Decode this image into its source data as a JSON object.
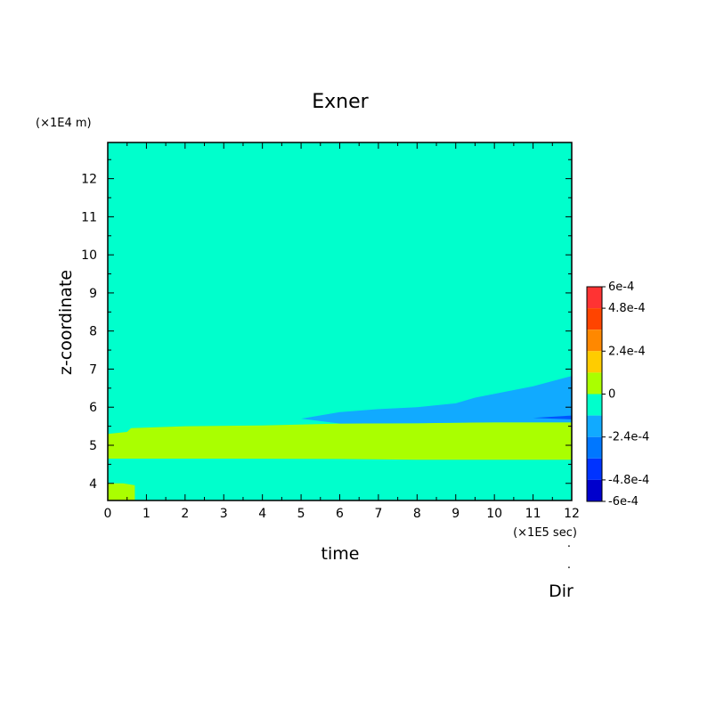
{
  "chart_data": {
    "type": "heatmap",
    "title": "Exner",
    "xlabel": "time",
    "ylabel": "z-coordinate",
    "x_unit": "(×1E5 sec)",
    "y_unit": "(×1E4 m)",
    "xlim": [
      0,
      12
    ],
    "ylim": [
      3.55,
      12.95
    ],
    "x_ticks": [
      "0",
      "1",
      "2",
      "3",
      "4",
      "5",
      "6",
      "7",
      "8",
      "9",
      "10",
      "11",
      "12"
    ],
    "y_ticks": [
      "4",
      "5",
      "6",
      "7",
      "8",
      "9",
      "10",
      "11",
      "12"
    ],
    "background_level_color": "#00ffcc",
    "regions": [
      {
        "name": "positive band",
        "color": "#aaff00",
        "polygon": [
          [
            0,
            4.65
          ],
          [
            0,
            5.3
          ],
          [
            0.5,
            5.35
          ],
          [
            0.6,
            5.45
          ],
          [
            2,
            5.5
          ],
          [
            4,
            5.52
          ],
          [
            6,
            5.57
          ],
          [
            8,
            5.58
          ],
          [
            10,
            5.6
          ],
          [
            12,
            5.6
          ],
          [
            12,
            4.62
          ],
          [
            8,
            4.62
          ],
          [
            6,
            4.64
          ],
          [
            3,
            4.65
          ],
          [
            0,
            4.65
          ]
        ]
      },
      {
        "name": "positive patch near ground",
        "color": "#aaff00",
        "polygon": [
          [
            0,
            3.55
          ],
          [
            0,
            4.0
          ],
          [
            0.4,
            4.0
          ],
          [
            0.7,
            3.95
          ],
          [
            0.7,
            3.55
          ]
        ]
      },
      {
        "name": "negative region aloft",
        "color": "#11aaff",
        "polygon": [
          [
            5,
            5.7
          ],
          [
            6,
            5.87
          ],
          [
            7,
            5.95
          ],
          [
            8,
            6.0
          ],
          [
            9,
            6.1
          ],
          [
            9.5,
            6.25
          ],
          [
            10,
            6.35
          ],
          [
            11,
            6.55
          ],
          [
            12,
            6.82
          ],
          [
            12,
            5.6
          ],
          [
            10,
            5.6
          ],
          [
            8,
            5.58
          ],
          [
            6,
            5.57
          ],
          [
            5,
            5.7
          ]
        ]
      },
      {
        "name": "stronger negative sliver",
        "color": "#0055ff",
        "polygon": [
          [
            11,
            5.72
          ],
          [
            12,
            5.78
          ],
          [
            12,
            5.68
          ],
          [
            11.5,
            5.7
          ],
          [
            11,
            5.72
          ]
        ]
      }
    ],
    "colorbar": {
      "labels": [
        "6e-4",
        "4.8e-4",
        "2.4e-4",
        "0",
        "-2.4e-4",
        "-4.8e-4",
        "-6e-4"
      ],
      "label_values": [
        6,
        4.8,
        2.4,
        0,
        -2.4,
        -4.8,
        -6
      ],
      "bins": [
        {
          "lo": 4.8,
          "hi": 6,
          "color": "#ff3333"
        },
        {
          "lo": 3.6,
          "hi": 4.8,
          "color": "#ff4400"
        },
        {
          "lo": 2.4,
          "hi": 3.6,
          "color": "#ff8800"
        },
        {
          "lo": 1.2,
          "hi": 2.4,
          "color": "#ffcc00"
        },
        {
          "lo": 0,
          "hi": 1.2,
          "color": "#aaff00"
        },
        {
          "lo": -1.2,
          "hi": 0,
          "color": "#00ffcc"
        },
        {
          "lo": -2.4,
          "hi": -1.2,
          "color": "#11aaff"
        },
        {
          "lo": -3.6,
          "hi": -2.4,
          "color": "#0077ff"
        },
        {
          "lo": -4.8,
          "hi": -3.6,
          "color": "#0033ff"
        },
        {
          "lo": -6,
          "hi": -4.8,
          "color": "#0000cc"
        }
      ],
      "range": [
        -6,
        6
      ]
    },
    "annotation": "Dir"
  }
}
